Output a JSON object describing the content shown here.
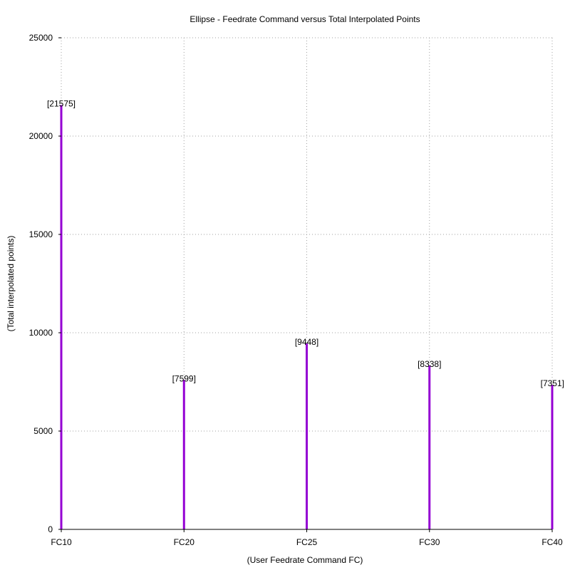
{
  "chart_data": {
    "type": "bar",
    "title": "Ellipse - Feedrate Command versus Total Interpolated Points",
    "xlabel": "(User Feedrate Command FC)",
    "ylabel": "(Total interpolated points)",
    "categories": [
      "FC10",
      "FC20",
      "FC25",
      "FC30",
      "FC40"
    ],
    "values": [
      21575,
      7599,
      9448,
      8338,
      7351
    ],
    "data_labels": [
      "[21575]",
      "[7599]",
      "[9448]",
      "[8338]",
      "[7351]"
    ],
    "ylim": [
      0,
      25000
    ],
    "yticks": [
      0,
      5000,
      10000,
      15000,
      20000,
      25000
    ],
    "grid": true,
    "series_color": "#9400d3"
  }
}
